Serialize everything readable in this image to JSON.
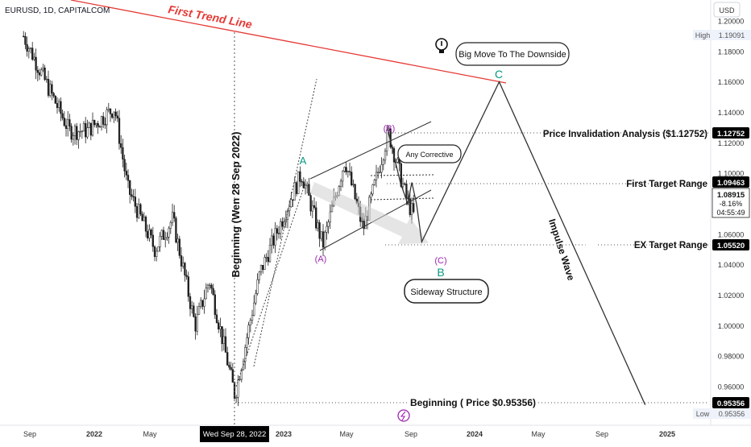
{
  "header": {
    "symbol": "EURUSD, 1D, CAPITALCOM",
    "currency": "USD"
  },
  "colors": {
    "candle": "#1f1f1f",
    "trendline": "#e53935",
    "wave_green": "#089981",
    "wave_purple": "#9c27b0",
    "label_bg": "#000000",
    "label_fg": "#ffffff"
  },
  "chart_data": {
    "type": "candlestick",
    "x_ticks": [
      "Sep",
      "2022",
      "May",
      "Wed Sep 28, 2022",
      "2023",
      "May",
      "Sep",
      "2024",
      "May",
      "Sep",
      "2025"
    ],
    "y_ticks": [
      "1.20000",
      "1.18000",
      "1.16000",
      "1.14000",
      "1.12000",
      "1.10000",
      "1.08000",
      "1.06000",
      "1.04000",
      "1.02000",
      "1.00000",
      "0.98000",
      "0.96000"
    ],
    "y_range": [
      0.948,
      1.215
    ],
    "grid": false,
    "series_price_path": [
      [
        "2021-08-20",
        1.19
      ],
      [
        "2021-10-01",
        1.16
      ],
      [
        "2021-11-15",
        1.128
      ],
      [
        "2021-12-20",
        1.128
      ],
      [
        "2022-02-10",
        1.143
      ],
      [
        "2022-03-07",
        1.09
      ],
      [
        "2022-04-28",
        1.05
      ],
      [
        "2022-06-01",
        1.07
      ],
      [
        "2022-07-14",
        1.0
      ],
      [
        "2022-08-10",
        1.03
      ],
      [
        "2022-09-28",
        0.954
      ],
      [
        "2022-11-15",
        1.035
      ],
      [
        "2023-02-02",
        1.1
      ],
      [
        "2023-03-15",
        1.053
      ],
      [
        "2023-04-26",
        1.109
      ],
      [
        "2023-05-31",
        1.063
      ],
      [
        "2023-07-18",
        1.127
      ],
      [
        "2023-08-24",
        1.081
      ],
      [
        "2023-09-05",
        1.072
      ]
    ],
    "projection_path": [
      [
        "2023-07-18",
        1.127
      ],
      [
        "2023-08-10",
        1.094
      ],
      [
        "2023-08-24",
        1.08
      ],
      [
        "2023-09-01",
        1.094
      ],
      [
        "2023-09-10",
        1.08
      ],
      [
        "2023-09-20",
        1.055
      ],
      [
        "2024-02-15",
        1.16
      ],
      [
        "2024-11-20",
        0.948
      ]
    ],
    "price_labels": {
      "high_label": "High",
      "high_value": "1.19091",
      "invalidation": "1.12752",
      "first_target": "1.09463",
      "current_price": "1.08915",
      "current_change": "-8.16%",
      "countdown": "04:55:49",
      "ex_target": "1.05520",
      "beginning": "0.95356",
      "low_label": "Low",
      "low_value": "0.95356"
    },
    "annotations": {
      "trend_line": "First Trend Line",
      "big_move": "Big Move To The Downside",
      "any_corrective": "Any Corrective",
      "sideway": "Sideway Structure",
      "beginning_vertical": "Beginning (Wen 28 Sep 2022)",
      "invalidation_text": "Price Invalidation Analysis ($1.12752)",
      "first_target_text": "First Target Range",
      "ex_target_text": "EX Target Range",
      "beginning_text": "Beginning ( Price $0.95356)",
      "impulse": "Impulse Wave",
      "wave_A": "A",
      "wave_B": "B",
      "wave_C": "C",
      "wave_pA": "(A)",
      "wave_pB": "(B)",
      "wave_pC": "(C)"
    }
  }
}
